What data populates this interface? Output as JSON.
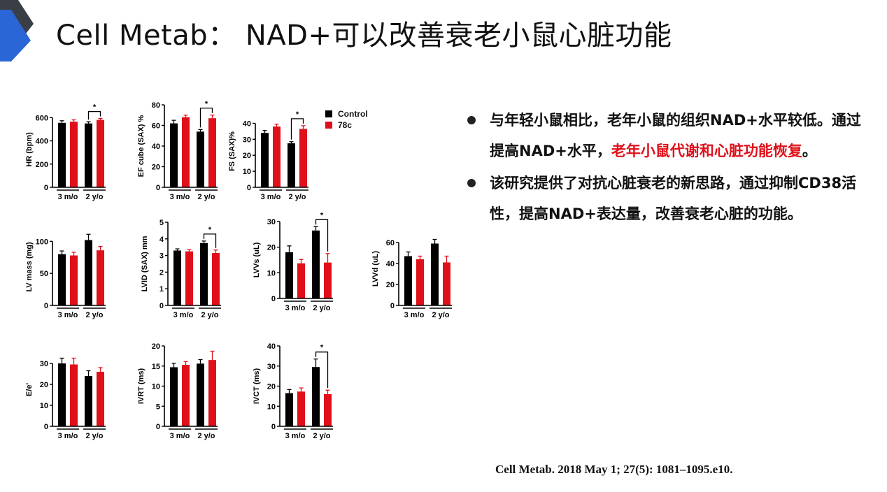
{
  "title": "Cell Metab：  NAD+可以改善衰老小鼠心脏功能",
  "legend": [
    {
      "label": "Control",
      "color": "#000000"
    },
    {
      "label": "78c",
      "color": "#e0101a"
    }
  ],
  "bullets": [
    {
      "parts": [
        {
          "text": "与年轻小鼠相比，老年小鼠的组织NAD+水平较低。通过提高NAD+水平，",
          "highlight": false
        },
        {
          "text": "老年小鼠代谢和心脏功能恢复",
          "highlight": true
        },
        {
          "text": "。",
          "highlight": false
        }
      ]
    },
    {
      "parts": [
        {
          "text": "该研究提供了对抗心脏衰老的新思路，通过抑制CD38活性，提高NAD+表达量，改善衰老心脏的功能。",
          "highlight": false
        }
      ]
    }
  ],
  "citation": "Cell Metab. 2018 May 1; 27(5): 1081–1095.e10.",
  "colors": {
    "control": "#000000",
    "treated": "#e0101a"
  },
  "chart_data": [
    {
      "type": "bar",
      "ylabel": "HR (bpm)",
      "ylim": [
        0,
        650
      ],
      "yticks": [
        0,
        200,
        400,
        600
      ],
      "groups": [
        "3 m/o",
        "2 y/o"
      ],
      "series": [
        {
          "name": "Control",
          "values": [
            555,
            550
          ],
          "errors": [
            18,
            15
          ]
        },
        {
          "name": "78c",
          "values": [
            565,
            580
          ],
          "errors": [
            16,
            12
          ]
        }
      ],
      "sig": "*"
    },
    {
      "type": "bar",
      "ylabel": "EF cube (SAX) %",
      "ylim": [
        0,
        80
      ],
      "yticks": [
        0,
        20,
        40,
        60,
        80
      ],
      "groups": [
        "3 m/o",
        "2 y/o"
      ],
      "series": [
        {
          "name": "Control",
          "values": [
            62,
            54
          ],
          "errors": [
            3,
            2
          ]
        },
        {
          "name": "78c",
          "values": [
            68,
            67
          ],
          "errors": [
            2,
            3
          ]
        }
      ],
      "sig": "*"
    },
    {
      "type": "bar",
      "ylabel": "FS (SAX)%",
      "ylim": [
        0,
        45
      ],
      "yticks": [
        0,
        10,
        20,
        30,
        40
      ],
      "groups": [
        "3 m/o",
        "2 y/o"
      ],
      "series": [
        {
          "name": "Control",
          "values": [
            34,
            27.5
          ],
          "errors": [
            1.5,
            1
          ]
        },
        {
          "name": "78c",
          "values": [
            38,
            36.5
          ],
          "errors": [
            1.5,
            2
          ]
        }
      ],
      "sig": "*"
    },
    {
      "type": "bar",
      "ylabel": "LV mass (mg)",
      "ylim": [
        0,
        120
      ],
      "yticks": [
        0,
        50,
        100
      ],
      "groups": [
        "3 m/o",
        "2 y/o"
      ],
      "series": [
        {
          "name": "Control",
          "values": [
            80,
            102
          ],
          "errors": [
            5,
            9
          ]
        },
        {
          "name": "78c",
          "values": [
            78,
            86
          ],
          "errors": [
            5,
            6
          ]
        }
      ],
      "sig": ""
    },
    {
      "type": "bar",
      "ylabel": "LVID (SAX) mm",
      "ylim": [
        0,
        5
      ],
      "yticks": [
        0,
        1,
        2,
        3,
        4,
        5
      ],
      "groups": [
        "3 m/o",
        "2 y/o"
      ],
      "series": [
        {
          "name": "Control",
          "values": [
            3.3,
            3.75
          ],
          "errors": [
            0.1,
            0.12
          ]
        },
        {
          "name": "78c",
          "values": [
            3.25,
            3.15
          ],
          "errors": [
            0.1,
            0.18
          ]
        }
      ],
      "sig": "*"
    },
    {
      "type": "bar",
      "ylabel": "LVVs (uL)",
      "ylim": [
        0,
        30
      ],
      "yticks": [
        0,
        10,
        20,
        30
      ],
      "groups": [
        "3 m/o",
        "2 y/o"
      ],
      "series": [
        {
          "name": "Control",
          "values": [
            18,
            26.5
          ],
          "errors": [
            2.5,
            1.5
          ]
        },
        {
          "name": "78c",
          "values": [
            13.7,
            14
          ],
          "errors": [
            1.5,
            3.5
          ]
        }
      ],
      "sig": "*"
    },
    {
      "type": "bar",
      "ylabel": "LVVd (uL)",
      "ylim": [
        0,
        70
      ],
      "yticks": [
        0,
        20,
        40,
        60
      ],
      "groups": [
        "3 m/o",
        "2 y/o"
      ],
      "series": [
        {
          "name": "Control",
          "values": [
            47,
            59
          ],
          "errors": [
            4,
            4
          ]
        },
        {
          "name": "78c",
          "values": [
            44,
            41
          ],
          "errors": [
            3,
            6
          ]
        }
      ],
      "sig": ""
    },
    {
      "type": "bar",
      "ylabel": "E/e'",
      "ylim": [
        0,
        35
      ],
      "yticks": [
        0,
        10,
        20,
        30
      ],
      "groups": [
        "3 m/o",
        "2 y/o"
      ],
      "series": [
        {
          "name": "Control",
          "values": [
            30,
            24
          ],
          "errors": [
            2.5,
            2.5
          ]
        },
        {
          "name": "78c",
          "values": [
            29.5,
            26
          ],
          "errors": [
            3,
            2
          ]
        }
      ],
      "sig": ""
    },
    {
      "type": "bar",
      "ylabel": "IVRT (ms)",
      "ylim": [
        0,
        20
      ],
      "yticks": [
        0,
        5,
        10,
        15,
        20
      ],
      "groups": [
        "3 m/o",
        "2 y/o"
      ],
      "series": [
        {
          "name": "Control",
          "values": [
            14.7,
            15.6
          ],
          "errors": [
            1,
            1
          ]
        },
        {
          "name": "78c",
          "values": [
            15.3,
            16.5
          ],
          "errors": [
            0.8,
            2.2
          ]
        }
      ],
      "sig": ""
    },
    {
      "type": "bar",
      "ylabel": "IVCT (ms)",
      "ylim": [
        0,
        40
      ],
      "yticks": [
        0,
        10,
        20,
        30,
        40
      ],
      "groups": [
        "3 m/o",
        "2 y/o"
      ],
      "series": [
        {
          "name": "Control",
          "values": [
            16.5,
            29.5
          ],
          "errors": [
            1.8,
            4
          ]
        },
        {
          "name": "78c",
          "values": [
            17.3,
            16
          ],
          "errors": [
            1.8,
            2
          ]
        }
      ],
      "sig": "*"
    }
  ]
}
